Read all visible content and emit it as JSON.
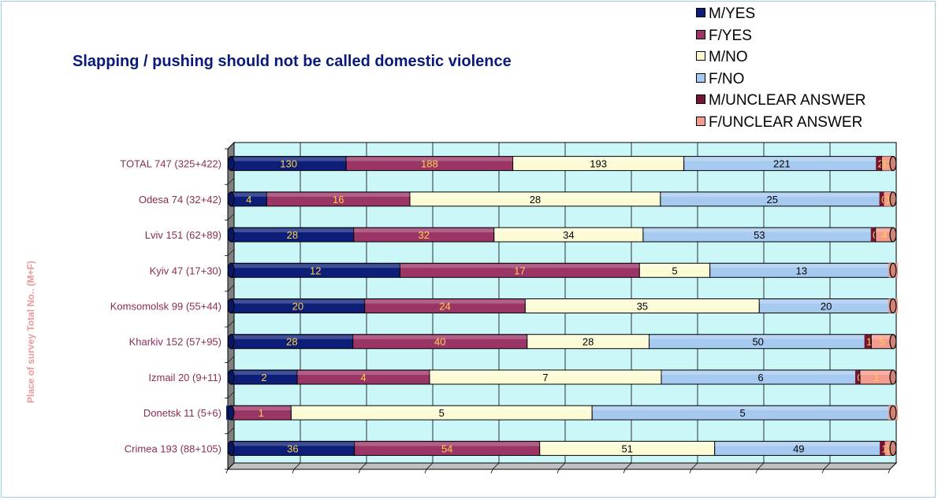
{
  "chart_data": {
    "type": "bar",
    "orientation": "horizontal",
    "stacked": true,
    "percent_stacked": true,
    "three_d": true,
    "title": "Slapping / pushing should not be called domestic violence",
    "xlabel": "",
    "ylabel": "Place of survey Total No.. (M+F)",
    "legend_position": "top-right",
    "grid": true,
    "categories": [
      "TOTAL 747 (325+422)",
      "Odesa 74 (32+42)",
      "Lviv 151 (62+89)",
      "Kyiv 47 (17+30)",
      "Komsomolsk 99 (55+44)",
      "Kharkiv 152 (57+95)",
      "Izmail 20 (9+11)",
      "Donetsk 11 (5+6)",
      "Crimea 193 (88+105)"
    ],
    "series": [
      {
        "name": "M/YES",
        "color": "#0c1e78",
        "label_color": "#ffd24a",
        "values": [
          130,
          4,
          28,
          12,
          20,
          28,
          2,
          0,
          36
        ]
      },
      {
        "name": "F/YES",
        "color": "#9b3566",
        "label_color": "#ffd24a",
        "values": [
          188,
          16,
          32,
          17,
          24,
          40,
          4,
          1,
          54
        ]
      },
      {
        "name": "M/NO",
        "color": "#fcfbd6",
        "label_color": "#000000",
        "values": [
          193,
          28,
          34,
          5,
          35,
          28,
          7,
          5,
          51
        ]
      },
      {
        "name": "F/NO",
        "color": "#a6c9ef",
        "label_color": "#000000",
        "values": [
          221,
          25,
          53,
          13,
          20,
          50,
          6,
          5,
          49
        ]
      },
      {
        "name": "M/UNCLEAR ANSWER",
        "color": "#741533",
        "label_color": "#ffd24a",
        "values": [
          2,
          0,
          0,
          0,
          0,
          1,
          0,
          0,
          1
        ]
      },
      {
        "name": "F/UNCLEAR ANSWER",
        "color": "#f49a8e",
        "label_color": "#ffd24a",
        "values": [
          13,
          1,
          4,
          0,
          0,
          5,
          1,
          0,
          2
        ]
      }
    ],
    "colors": {
      "plot_background": "#ccf7f8",
      "floor": "#c0c0c0",
      "wall_side": "#808080",
      "category_label": "#8a2c56",
      "title": "#0a1a7a",
      "ytitle": "#e79a9a"
    }
  }
}
